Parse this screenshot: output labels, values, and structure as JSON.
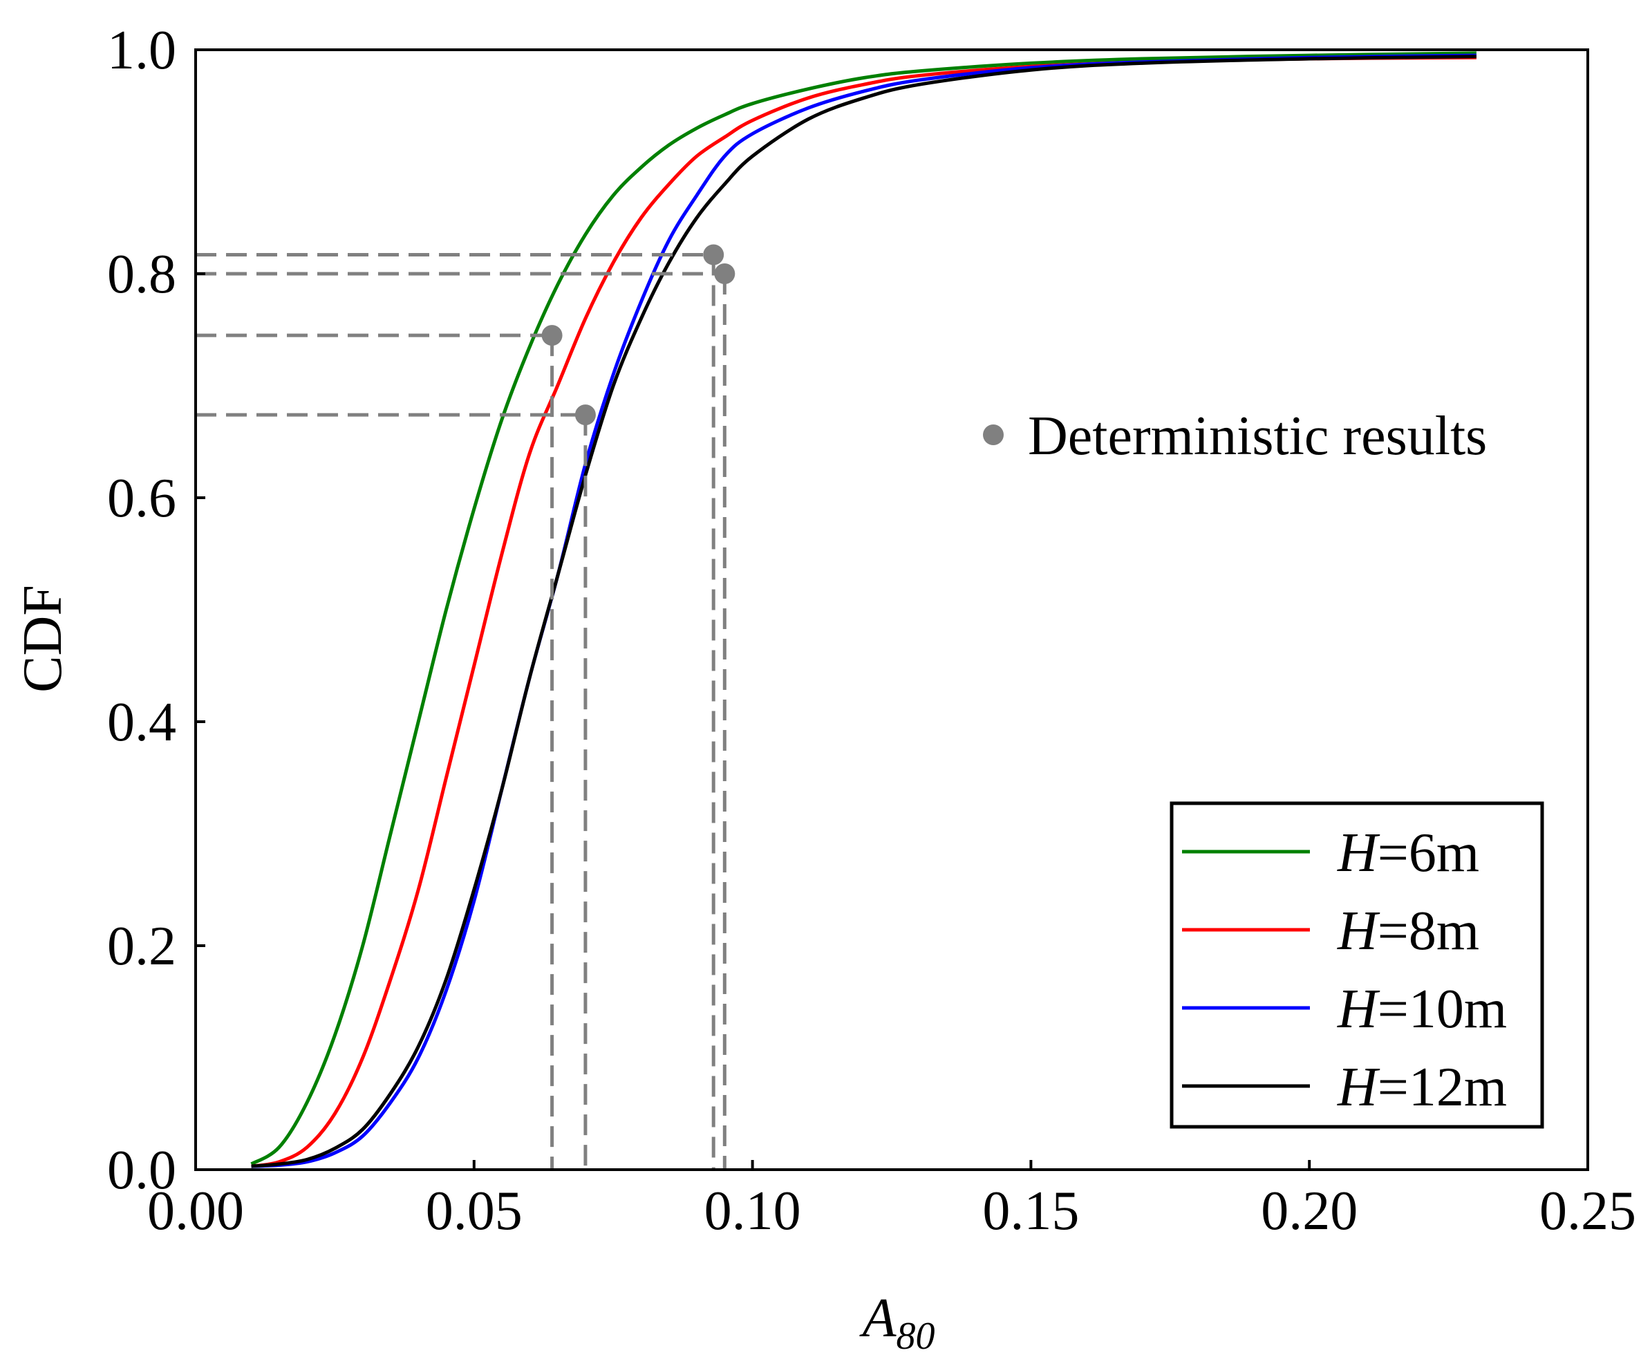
{
  "chart_data": {
    "type": "line",
    "xlabel": "A",
    "xlabel_sub": "80",
    "ylabel": "CDF",
    "xlim": [
      0.0,
      0.25
    ],
    "ylim": [
      0.0,
      1.0
    ],
    "x_ticks": [
      0.0,
      0.05,
      0.1,
      0.15,
      0.2,
      0.25
    ],
    "x_tick_labels": [
      "0.00",
      "0.05",
      "0.10",
      "0.15",
      "0.20",
      "0.25"
    ],
    "y_ticks": [
      0.0,
      0.2,
      0.4,
      0.6,
      0.8,
      1.0
    ],
    "y_tick_labels": [
      "0.0",
      "0.2",
      "0.4",
      "0.6",
      "0.8",
      "1.0"
    ],
    "grid": false,
    "legend_position": "bottom-right",
    "series": [
      {
        "name": "H=6m",
        "var": "H",
        "label_rest": "=6m",
        "color": "#008000",
        "x": [
          0.01,
          0.015,
          0.02,
          0.025,
          0.03,
          0.035,
          0.04,
          0.045,
          0.05,
          0.055,
          0.06,
          0.065,
          0.07,
          0.075,
          0.08,
          0.085,
          0.09,
          0.095,
          0.1,
          0.11,
          0.12,
          0.13,
          0.15,
          0.17,
          0.2,
          0.23
        ],
        "y": [
          0.005,
          0.02,
          0.06,
          0.12,
          0.2,
          0.3,
          0.4,
          0.5,
          0.59,
          0.67,
          0.735,
          0.79,
          0.835,
          0.87,
          0.895,
          0.915,
          0.93,
          0.942,
          0.952,
          0.965,
          0.975,
          0.981,
          0.988,
          0.992,
          0.995,
          0.997
        ]
      },
      {
        "name": "H=8m",
        "var": "H",
        "label_rest": "=8m",
        "color": "#ff0000",
        "x": [
          0.01,
          0.015,
          0.02,
          0.025,
          0.03,
          0.035,
          0.04,
          0.045,
          0.05,
          0.055,
          0.06,
          0.065,
          0.07,
          0.075,
          0.08,
          0.085,
          0.09,
          0.095,
          0.1,
          0.11,
          0.12,
          0.13,
          0.15,
          0.17,
          0.2,
          0.23
        ],
        "y": [
          0.003,
          0.007,
          0.02,
          0.05,
          0.1,
          0.17,
          0.25,
          0.35,
          0.45,
          0.55,
          0.64,
          0.7,
          0.76,
          0.81,
          0.85,
          0.88,
          0.905,
          0.922,
          0.937,
          0.957,
          0.969,
          0.977,
          0.985,
          0.989,
          0.992,
          0.993
        ]
      },
      {
        "name": "H=10m",
        "var": "H",
        "label_rest": "=10m",
        "color": "#0000ff",
        "x": [
          0.01,
          0.015,
          0.02,
          0.025,
          0.03,
          0.035,
          0.04,
          0.045,
          0.05,
          0.055,
          0.06,
          0.065,
          0.07,
          0.075,
          0.08,
          0.085,
          0.09,
          0.095,
          0.1,
          0.11,
          0.12,
          0.13,
          0.15,
          0.17,
          0.2,
          0.23
        ],
        "y": [
          0.003,
          0.004,
          0.007,
          0.015,
          0.03,
          0.06,
          0.1,
          0.16,
          0.24,
          0.34,
          0.44,
          0.53,
          0.63,
          0.71,
          0.775,
          0.83,
          0.87,
          0.905,
          0.925,
          0.948,
          0.963,
          0.973,
          0.984,
          0.989,
          0.993,
          0.995
        ]
      },
      {
        "name": "H=12m",
        "var": "H",
        "label_rest": "=12m",
        "color": "#000000",
        "x": [
          0.01,
          0.015,
          0.02,
          0.025,
          0.03,
          0.035,
          0.04,
          0.045,
          0.05,
          0.055,
          0.06,
          0.065,
          0.07,
          0.075,
          0.08,
          0.085,
          0.09,
          0.095,
          0.1,
          0.11,
          0.12,
          0.13,
          0.15,
          0.17,
          0.2,
          0.23
        ],
        "y": [
          0.003,
          0.005,
          0.009,
          0.019,
          0.036,
          0.068,
          0.11,
          0.17,
          0.25,
          0.34,
          0.44,
          0.53,
          0.62,
          0.7,
          0.76,
          0.81,
          0.85,
          0.88,
          0.905,
          0.938,
          0.957,
          0.969,
          0.982,
          0.988,
          0.992,
          0.994
        ]
      }
    ],
    "deterministic_points": {
      "label": "Deterministic results",
      "color": "#808080",
      "points": [
        {
          "x": 0.064,
          "y": 0.745
        },
        {
          "x": 0.07,
          "y": 0.674
        },
        {
          "x": 0.093,
          "y": 0.817
        },
        {
          "x": 0.095,
          "y": 0.8
        }
      ]
    }
  }
}
